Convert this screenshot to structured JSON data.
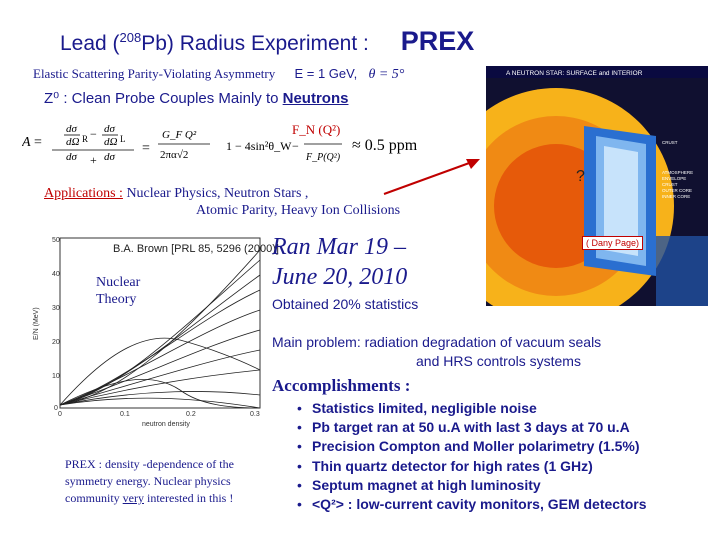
{
  "title": {
    "main_pre": "Lead  (",
    "sup": "208",
    "main_mid": "Pb)  Radius  Experiment :",
    "prex": "PREX"
  },
  "subline": {
    "text": "Elastic  Scattering  Parity-Violating  Asymmetry",
    "energy": "E = 1  GeV,",
    "theta": "θ = 5°"
  },
  "z0": {
    "prefix": "Z⁰ :  Clean  Probe  Couples  Mainly  to ",
    "neutrons": "Neutrons"
  },
  "formula": {
    "a": "A",
    "gfq": "G_F Q²",
    "denom": "2πα√2",
    "sin": "1 − 4sin²θ_W",
    "ratio": "F_N(Q²)",
    "fp": "F_P(Q²)",
    "approx": "≈  0.5  ppm",
    "fn_label": "F_N (Q²)"
  },
  "applications": {
    "label": "Applications :",
    "line1": "  Nuclear  Physics,     Neutron Stars ,",
    "line2": "Atomic Parity,  Heavy Ion Collisions"
  },
  "run": {
    "line1": "Ran  Mar 19 –",
    "line2": "June 20,  2010",
    "stats": "Obtained  20%  statistics"
  },
  "main_problem": {
    "line1": "Main problem:  radiation degradation  of vacuum seals",
    "line2": "and  HRS  controls systems"
  },
  "accomplishments": {
    "heading": "Accomplishments :",
    "items": [
      "Statistics  limited,  negligible noise",
      "Pb target ran at 50 u.A with  last 3 days at 70 u.A",
      "Precision Compton and Moller polarimetry (1.5%)",
      "Thin  quartz  detector  for high rates (1 GHz)",
      "Septum magnet  at  high luminosity",
      "<Q²> :  low-current cavity monitors, GEM detectors"
    ]
  },
  "plot": {
    "ref": "B.A. Brown [PRL 85, 5296 (2000)]",
    "label_line1": "Nuclear",
    "label_line2": "Theory",
    "xlabel": "neutron density",
    "ylabel": "E/N (MeV)",
    "yticks": [
      "50",
      "40",
      "30",
      "20",
      "10",
      "0"
    ],
    "xticks": [
      "0",
      "0.1",
      "0.2",
      "0.3"
    ]
  },
  "prex_note": {
    "line1": "PREX  :  density -dependence of  the",
    "line2": "symmetry  energy.  Nuclear physics",
    "line3_pre": "community ",
    "line3_very": "very",
    "line3_post": " interested  in  this !"
  },
  "star": {
    "title": "A NEUTRON STAR: SURFACE and INTERIOR",
    "dany": "( Dany Page)",
    "colors": {
      "core": "#e65a0a",
      "mantle": "#f7b21a",
      "crust": "#2a6fd0",
      "bg": "#101030"
    }
  }
}
